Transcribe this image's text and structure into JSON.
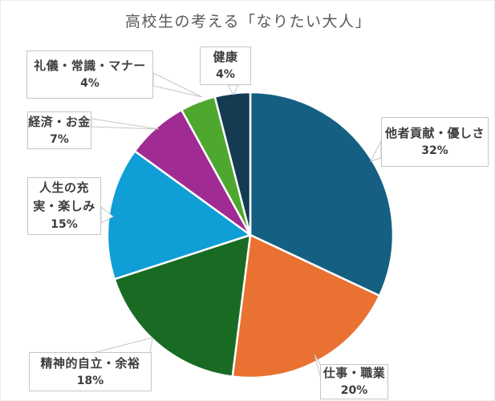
{
  "title": "高校生の考える「なりたい大人」",
  "chart_data": {
    "type": "pie",
    "title": "高校生の考える「なりたい大人」",
    "unit": "%",
    "start_angle_deg": 0,
    "direction": "clockwise",
    "legend": "none (data labels as callouts)",
    "slices": [
      {
        "label": "他者貢献・優しさ",
        "percent": 32,
        "color": "#156082"
      },
      {
        "label": "仕事・職業",
        "percent": 20,
        "color": "#E97132"
      },
      {
        "label": "精神的自立・余裕",
        "percent": 18,
        "color": "#196B24"
      },
      {
        "label": "人生の充実・楽しみ",
        "percent": 15,
        "color": "#0F9ED5"
      },
      {
        "label": "経済・お金",
        "percent": 7,
        "color": "#A02B93"
      },
      {
        "label": "礼儀・常識・マナー",
        "percent": 4,
        "color": "#4EA72E"
      },
      {
        "label": "健康",
        "percent": 4,
        "color": "#143B52"
      }
    ]
  },
  "callouts": {
    "tasha": {
      "line1": "他者貢献・優しさ",
      "value": "32%"
    },
    "shigoto": {
      "line1": "仕事・職業",
      "value": "20%"
    },
    "seishin": {
      "line1": "精神的自立・余裕",
      "value": "18%"
    },
    "jinsei": {
      "line1": "人生の充",
      "line2": "実・楽しみ",
      "value": "15%"
    },
    "keizai": {
      "line1": "経済・お金",
      "value": "7%"
    },
    "reigi": {
      "line1": "礼儀・常識・マナー",
      "value": "4%"
    },
    "kenko": {
      "line1": "健康",
      "value": "4%"
    }
  },
  "style": {
    "title_color": "#595959",
    "label_text_color": "#3d3d3d",
    "callout_border_color": "#c6c6c6",
    "slice_gap_color": "#ffffff"
  }
}
